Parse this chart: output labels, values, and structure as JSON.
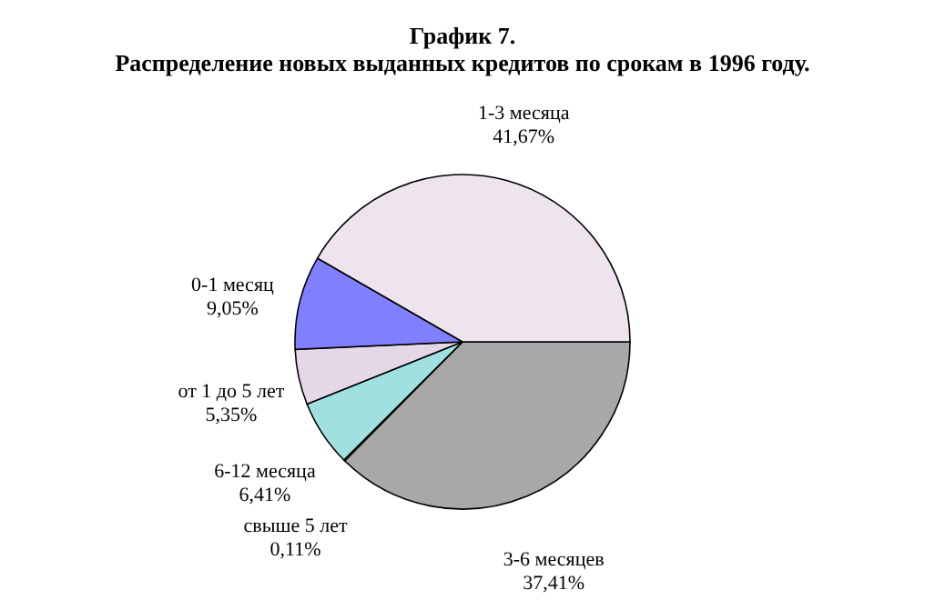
{
  "chart_data": {
    "type": "pie",
    "title": "График 7.",
    "subtitle": "Распределение новых выданных кредитов по срокам в 1996 году.",
    "categories": [
      "3-6 месяцев",
      "свыше 5 лет",
      "6-12 месяца",
      "от 1 до 5 лет",
      "0-1 месяц",
      "1-3  месяца"
    ],
    "values": [
      37.41,
      0.11,
      6.41,
      5.35,
      9.05,
      41.67
    ],
    "colors": [
      "#a8a8a8",
      "#303030",
      "#a0e0e0",
      "#e4d8e8",
      "#8080ff",
      "#eee4ee"
    ],
    "value_labels": [
      "37,41%",
      "0,11%",
      "6,41%",
      "5,35%",
      "9,05%",
      "41,67%"
    ]
  }
}
